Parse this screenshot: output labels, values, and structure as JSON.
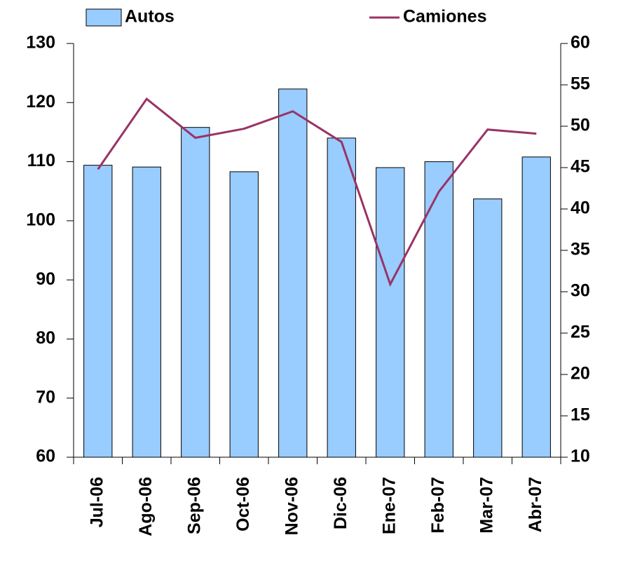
{
  "chart_data": {
    "type": "bar-line",
    "categories": [
      "Jul-06",
      "Ago-06",
      "Sep-06",
      "Oct-06",
      "Nov-06",
      "Dic-06",
      "Ene-07",
      "Feb-07",
      "Mar-07",
      "Abr-07"
    ],
    "series": [
      {
        "name": "Autos",
        "type": "bar",
        "color": "#99ccff",
        "values": [
          109.4,
          109.1,
          115.8,
          108.3,
          122.3,
          114.0,
          109.0,
          110.0,
          103.7,
          110.8
        ]
      },
      {
        "name": "Camiones",
        "type": "line",
        "axis": "y2",
        "color": "#993366",
        "values": [
          44.8,
          53.3,
          48.6,
          49.7,
          51.8,
          48.1,
          30.9,
          42.1,
          49.6,
          49.1
        ]
      }
    ],
    "ylim": [
      60,
      130
    ],
    "yticks": [
      60,
      70,
      80,
      90,
      100,
      110,
      120,
      130
    ],
    "y2lim": [
      10,
      60
    ],
    "y2ticks": [
      10,
      15,
      20,
      25,
      30,
      35,
      40,
      45,
      50,
      55,
      60
    ],
    "legend": "top",
    "grid": false
  }
}
